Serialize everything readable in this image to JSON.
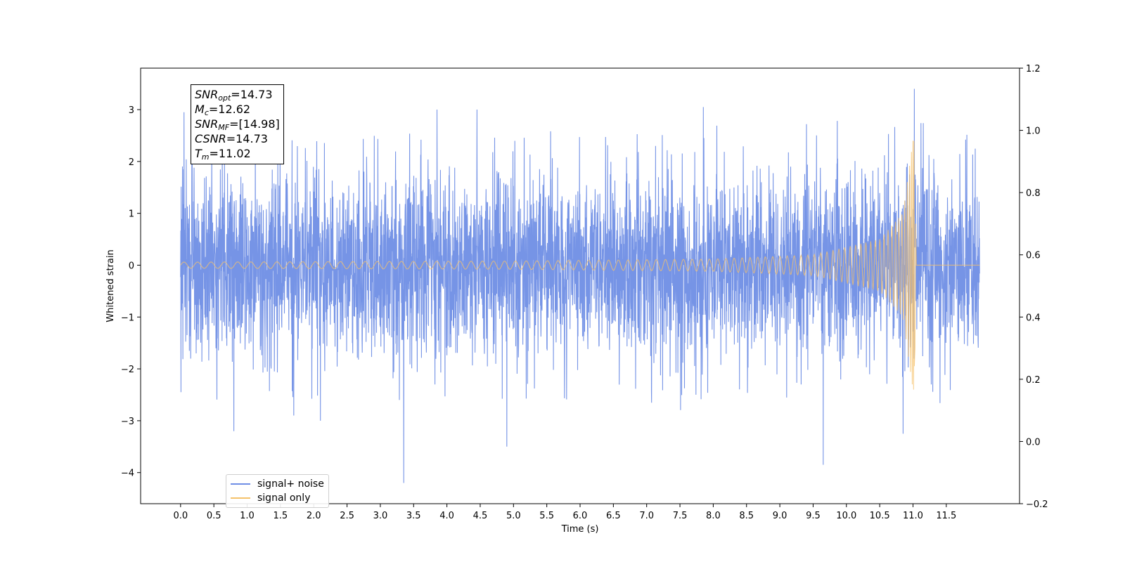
{
  "chart_data": {
    "type": "line",
    "title": "",
    "xlabel": "Time (s)",
    "ylabel": "Whitened strain",
    "xlim": [
      -0.6,
      12.6
    ],
    "ylim": [
      -4.6,
      3.8
    ],
    "y2lim": [
      -0.2,
      1.2
    ],
    "grid": false,
    "legend_position": "lower-left",
    "x_ticks": [
      "0.0",
      "0.5",
      "1.0",
      "1.5",
      "2.0",
      "2.5",
      "3.0",
      "3.5",
      "4.0",
      "4.5",
      "5.0",
      "5.5",
      "6.0",
      "6.5",
      "7.0",
      "7.5",
      "8.0",
      "8.5",
      "9.0",
      "9.5",
      "10.0",
      "10.5",
      "11.0",
      "11.5"
    ],
    "y_ticks": [
      "3",
      "2",
      "1",
      "0",
      "−1",
      "−2",
      "−3",
      "−4"
    ],
    "y2_ticks": [
      "1.2",
      "1.0",
      "0.8",
      "0.6",
      "0.4",
      "0.2",
      "0.0",
      "−0.2"
    ],
    "series": [
      {
        "name": "signal+ noise",
        "color": "#6f8ee5",
        "x_range": [
          0.0,
          12.0
        ],
        "noise_std": 0.9,
        "typical_range": [
          -1.7,
          1.7
        ],
        "peaks": [
          {
            "x": 0.05,
            "y": 2.95
          },
          {
            "x": 0.8,
            "y": -3.2
          },
          {
            "x": 1.7,
            "y": -2.9
          },
          {
            "x": 2.1,
            "y": -3.0
          },
          {
            "x": 3.35,
            "y": -4.2
          },
          {
            "x": 3.85,
            "y": 3.0
          },
          {
            "x": 4.45,
            "y": 3.0
          },
          {
            "x": 4.9,
            "y": -3.5
          },
          {
            "x": 7.85,
            "y": 3.05
          },
          {
            "x": 9.65,
            "y": -3.85
          },
          {
            "x": 10.85,
            "y": -3.25
          },
          {
            "x": 11.02,
            "y": 3.4
          }
        ]
      },
      {
        "name": "signal only",
        "color": "#f5c26b",
        "type": "chirp",
        "t_merger": 11.02,
        "t_end": 12.0,
        "amplitude_at_t": [
          {
            "t": 0.0,
            "a": 0.06
          },
          {
            "t": 5.0,
            "a": 0.08
          },
          {
            "t": 8.0,
            "a": 0.12
          },
          {
            "t": 9.5,
            "a": 0.2
          },
          {
            "t": 10.5,
            "a": 0.5
          },
          {
            "t": 10.85,
            "a": 1.0
          },
          {
            "t": 11.0,
            "a": 2.4
          }
        ]
      }
    ],
    "annotation": {
      "snr_opt": "=14.73",
      "mc": "=12.62",
      "snr_mf": "=[14.98]",
      "csnr": "=14.73",
      "tm": "=11.02"
    }
  },
  "annotation_labels": {
    "snr": "SNR",
    "opt": "opt",
    "m": "M",
    "c": "c",
    "mf": "MF",
    "csnr": "CSNR",
    "t": "T",
    "sub_m": "m"
  }
}
